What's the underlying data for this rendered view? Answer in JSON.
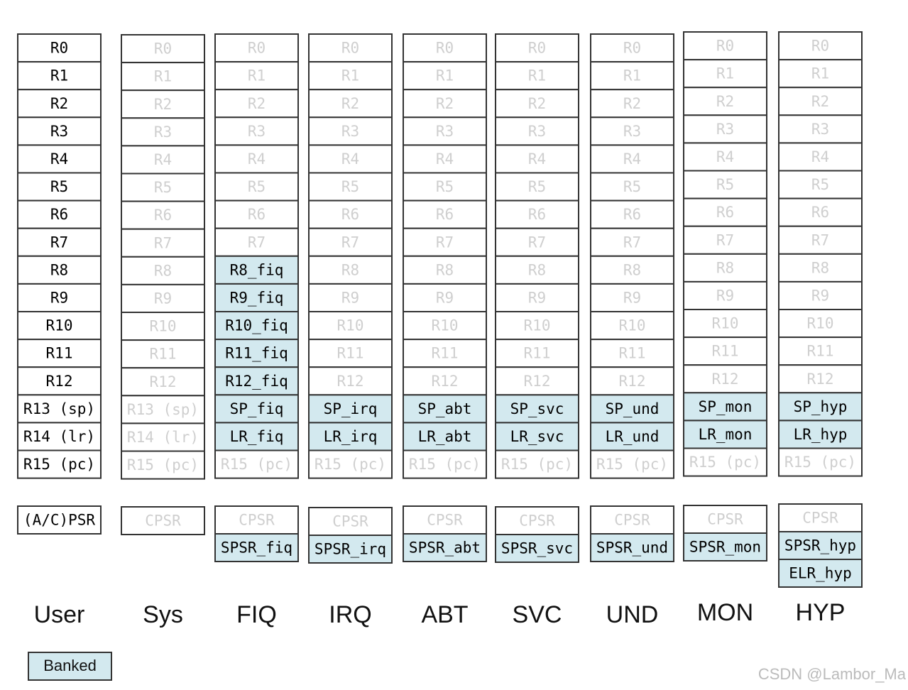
{
  "columns": [
    {
      "label": "User",
      "registers": [
        "R0",
        "R1",
        "R2",
        "R3",
        "R4",
        "R5",
        "R6",
        "R7",
        "R8",
        "R9",
        "R10",
        "R11",
        "R12",
        "R13 (sp)",
        "R14 (lr)",
        "R15 (pc)"
      ],
      "status": [
        "(A/C)PSR"
      ]
    },
    {
      "label": "Sys",
      "registers": [
        "R0",
        "R1",
        "R2",
        "R3",
        "R4",
        "R5",
        "R6",
        "R7",
        "R8",
        "R9",
        "R10",
        "R11",
        "R12",
        "R13 (sp)",
        "R14 (lr)",
        "R15 (pc)"
      ],
      "status": [
        "CPSR"
      ]
    },
    {
      "label": "FIQ",
      "registers": [
        "R0",
        "R1",
        "R2",
        "R3",
        "R4",
        "R5",
        "R6",
        "R7",
        "R8_fiq",
        "R9_fiq",
        "R10_fiq",
        "R11_fiq",
        "R12_fiq",
        "SP_fiq",
        "LR_fiq",
        "R15 (pc)"
      ],
      "status": [
        "CPSR",
        "SPSR_fiq"
      ]
    },
    {
      "label": "IRQ",
      "registers": [
        "R0",
        "R1",
        "R2",
        "R3",
        "R4",
        "R5",
        "R6",
        "R7",
        "R8",
        "R9",
        "R10",
        "R11",
        "R12",
        "SP_irq",
        "LR_irq",
        "R15 (pc)"
      ],
      "status": [
        "CPSR",
        "SPSR_irq"
      ]
    },
    {
      "label": "ABT",
      "registers": [
        "R0",
        "R1",
        "R2",
        "R3",
        "R4",
        "R5",
        "R6",
        "R7",
        "R8",
        "R9",
        "R10",
        "R11",
        "R12",
        "SP_abt",
        "LR_abt",
        "R15 (pc)"
      ],
      "status": [
        "CPSR",
        "SPSR_abt"
      ]
    },
    {
      "label": "SVC",
      "registers": [
        "R0",
        "R1",
        "R2",
        "R3",
        "R4",
        "R5",
        "R6",
        "R7",
        "R8",
        "R9",
        "R10",
        "R11",
        "R12",
        "SP_svc",
        "LR_svc",
        "R15 (pc)"
      ],
      "status": [
        "CPSR",
        "SPSR_svc"
      ]
    },
    {
      "label": "UND",
      "registers": [
        "R0",
        "R1",
        "R2",
        "R3",
        "R4",
        "R5",
        "R6",
        "R7",
        "R8",
        "R9",
        "R10",
        "R11",
        "R12",
        "SP_und",
        "LR_und",
        "R15 (pc)"
      ],
      "status": [
        "CPSR",
        "SPSR_und"
      ]
    },
    {
      "label": "MON",
      "registers": [
        "R0",
        "R1",
        "R2",
        "R3",
        "R4",
        "R5",
        "R6",
        "R7",
        "R8",
        "R9",
        "R10",
        "R11",
        "R12",
        "SP_mon",
        "LR_mon",
        "R15 (pc)"
      ],
      "status": [
        "CPSR",
        "SPSR_mon"
      ]
    },
    {
      "label": "HYP",
      "registers": [
        "R0",
        "R1",
        "R2",
        "R3",
        "R4",
        "R5",
        "R6",
        "R7",
        "R8",
        "R9",
        "R10",
        "R11",
        "R12",
        "SP_hyp",
        "LR_hyp",
        "R15 (pc)"
      ],
      "status": [
        "CPSR",
        "SPSR_hyp",
        "ELR_hyp"
      ]
    }
  ],
  "legend": {
    "label": "Banked"
  },
  "watermark": "CSDN @Lambor_Ma"
}
